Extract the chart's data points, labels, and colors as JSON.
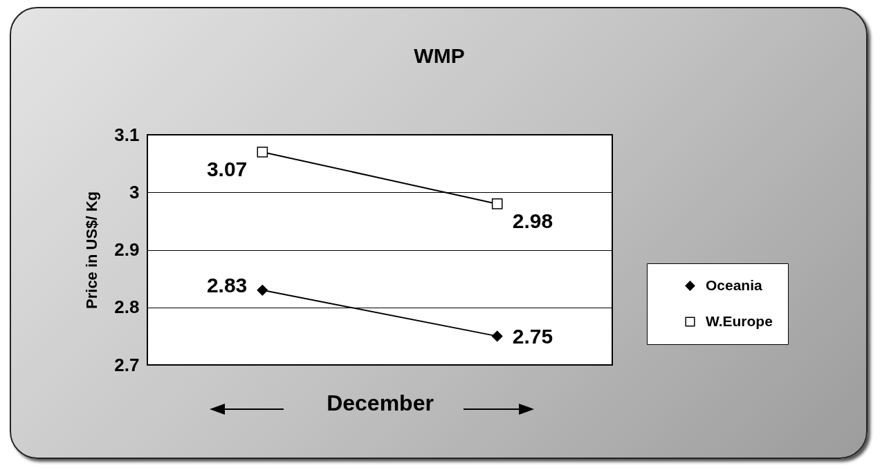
{
  "chart_data": {
    "type": "line",
    "title": "WMP",
    "xlabel": "December",
    "ylabel": "Price in US$/ Kg",
    "categories": [
      null,
      null
    ],
    "series": [
      {
        "name": "Oceania",
        "color": "#000000",
        "marker": "diamond",
        "values": [
          2.83,
          2.75
        ]
      },
      {
        "name": "W.Europe",
        "color": "#000000",
        "marker": "square",
        "values": [
          3.07,
          2.98
        ]
      }
    ],
    "ylim": [
      2.7,
      3.1
    ],
    "yticks": [
      2.7,
      2.8,
      2.9,
      3,
      3.1
    ],
    "grid": "y",
    "legend": "right",
    "data_labels": true,
    "tick_labels": "y"
  }
}
